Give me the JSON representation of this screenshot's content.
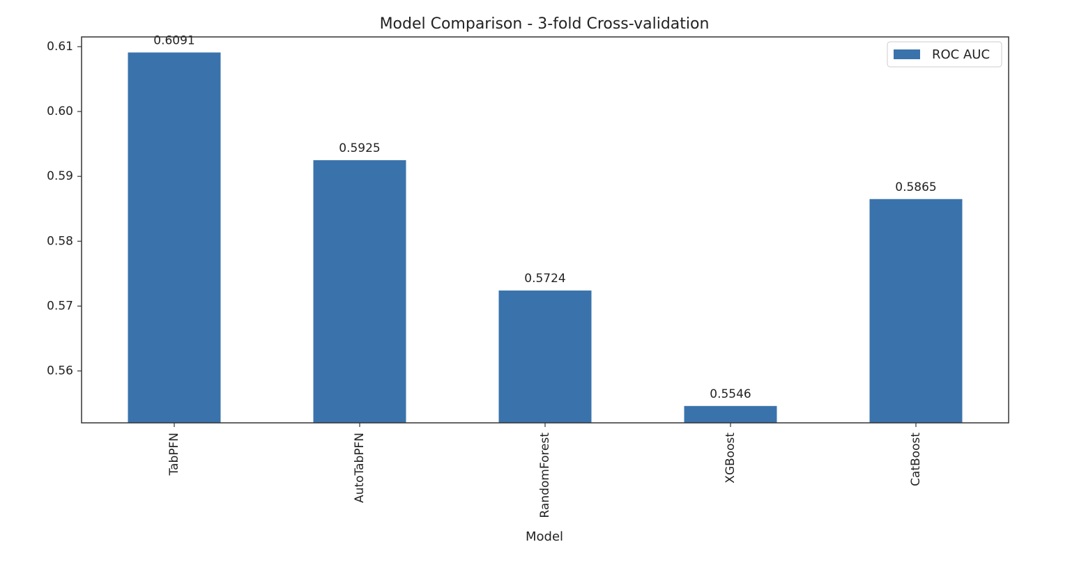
{
  "chart_data": {
    "type": "bar",
    "title": "Model Comparison - 3-fold Cross-validation",
    "xlabel": "Model",
    "ylabel": "",
    "categories": [
      "TabPFN",
      "AutoTabPFN",
      "RandomForest",
      "XGBoost",
      "CatBoost"
    ],
    "series": [
      {
        "name": "ROC AUC",
        "values": [
          0.6091,
          0.5925,
          0.5724,
          0.5546,
          0.5865
        ],
        "color": "#3a73ab"
      }
    ],
    "data_labels": [
      "0.6091",
      "0.5925",
      "0.5724",
      "0.5546",
      "0.5865"
    ],
    "ylim": [
      0.552,
      0.6115
    ],
    "yticks": [
      0.56,
      0.57,
      0.58,
      0.59,
      0.6,
      0.61
    ],
    "ytick_labels": [
      "0.56",
      "0.57",
      "0.58",
      "0.59",
      "0.60",
      "0.61"
    ],
    "grid": false,
    "legend_position": "top-right",
    "xtick_rotation": "vertical"
  }
}
